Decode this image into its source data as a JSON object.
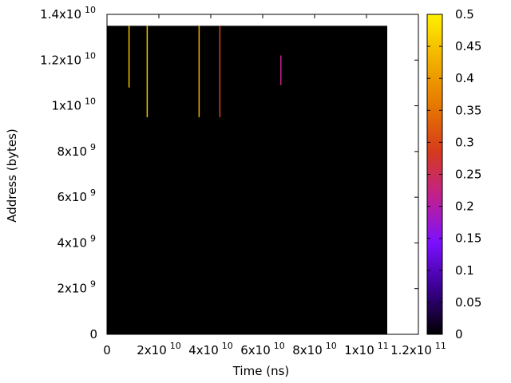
{
  "chart_data": {
    "type": "heatmap",
    "title": "",
    "xlabel": "Time (ns)",
    "ylabel": "Address (bytes)",
    "xlim": [
      0,
      120000000000
    ],
    "ylim": [
      0,
      14000000000
    ],
    "data_extent": {
      "x": [
        0,
        108000000000
      ],
      "y": [
        0,
        13500000000
      ]
    },
    "background_value": 0,
    "x_ticks": [
      {
        "value": 0,
        "mantissa": "0",
        "exponent": ""
      },
      {
        "value": 20000000000,
        "mantissa": "2x10",
        "exponent": "10"
      },
      {
        "value": 40000000000,
        "mantissa": "4x10",
        "exponent": "10"
      },
      {
        "value": 60000000000,
        "mantissa": "6x10",
        "exponent": "10"
      },
      {
        "value": 80000000000,
        "mantissa": "8x10",
        "exponent": "10"
      },
      {
        "value": 100000000000,
        "mantissa": "1x10",
        "exponent": "11"
      },
      {
        "value": 120000000000,
        "mantissa": "1.2x10",
        "exponent": "11"
      }
    ],
    "y_ticks": [
      {
        "value": 0,
        "mantissa": "0",
        "exponent": ""
      },
      {
        "value": 2000000000,
        "mantissa": "2x10",
        "exponent": "9"
      },
      {
        "value": 4000000000,
        "mantissa": "4x10",
        "exponent": "9"
      },
      {
        "value": 6000000000,
        "mantissa": "6x10",
        "exponent": "9"
      },
      {
        "value": 8000000000,
        "mantissa": "8x10",
        "exponent": "9"
      },
      {
        "value": 10000000000,
        "mantissa": "1x10",
        "exponent": "10"
      },
      {
        "value": 12000000000,
        "mantissa": "1.2x10",
        "exponent": "10"
      },
      {
        "value": 14000000000,
        "mantissa": "1.4x10",
        "exponent": "10"
      }
    ],
    "colorbar": {
      "range": [
        0,
        0.5
      ],
      "ticks": [
        "0",
        "0.05",
        "0.1",
        "0.15",
        "0.2",
        "0.25",
        "0.3",
        "0.35",
        "0.4",
        "0.45",
        "0.5"
      ],
      "colormap": [
        "#000000",
        "#3a0090",
        "#7b10ff",
        "#c02090",
        "#d63a1c",
        "#e67800",
        "#f2b000",
        "#fff000"
      ]
    },
    "streaks": [
      {
        "x": 8500000000,
        "y_start": 10800000000,
        "y_end": 13500000000,
        "value": 0.45
      },
      {
        "x": 15500000000,
        "y_start": 9500000000,
        "y_end": 13500000000,
        "value": 0.45
      },
      {
        "x": 35500000000,
        "y_start": 9500000000,
        "y_end": 13500000000,
        "value": 0.43
      },
      {
        "x": 43500000000,
        "y_start": 9500000000,
        "y_end": 13500000000,
        "value": 0.3
      },
      {
        "x": 67000000000,
        "y_start": 10900000000,
        "y_end": 12200000000,
        "value": 0.22
      }
    ]
  }
}
